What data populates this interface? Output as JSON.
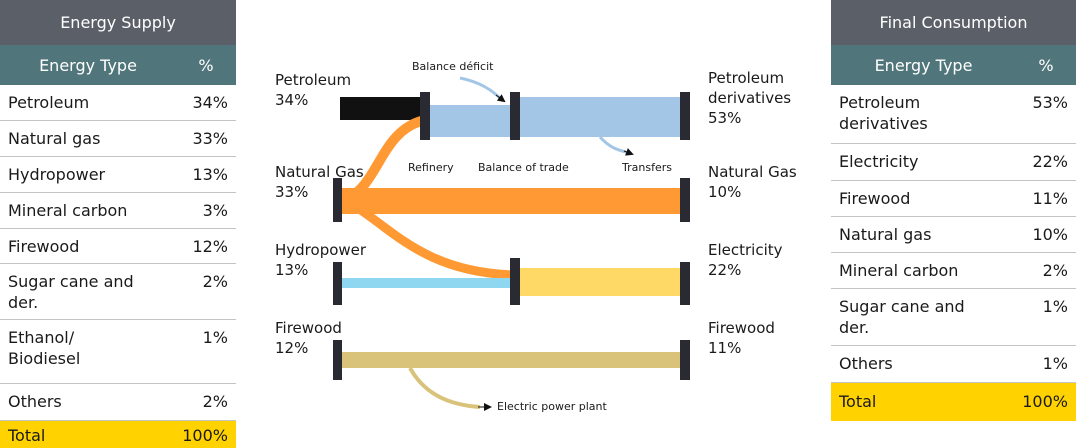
{
  "supply_table": {
    "title": "Energy Supply",
    "header": [
      "Energy Type",
      "%"
    ],
    "rows": [
      [
        "Petroleum",
        "34%"
      ],
      [
        "Natural gas",
        "33%"
      ],
      [
        "Hydropower",
        "13%"
      ],
      [
        "Mineral carbon",
        "3%"
      ],
      [
        "Firewood",
        "12%"
      ],
      [
        "Sugar cane and der.",
        "2%"
      ],
      [
        "Ethanol/ Biodiesel",
        "1%"
      ],
      [
        "Others",
        "2%"
      ]
    ],
    "total": [
      "Total",
      "100%"
    ]
  },
  "flow": {
    "sources": [
      {
        "label": "Petroleum",
        "value": "34%"
      },
      {
        "label": "Natural Gas",
        "value": "33%"
      },
      {
        "label": "Hydropower",
        "value": "13%"
      },
      {
        "label": "Firewood",
        "value": "12%"
      }
    ],
    "targets": [
      {
        "label": "Petroleum derivatives",
        "value": "53%"
      },
      {
        "label": "Natural Gas",
        "value": "10%"
      },
      {
        "label": "Electricity",
        "value": "22%"
      },
      {
        "label": "Firewood",
        "value": "11%"
      }
    ],
    "annotations": [
      "Balance déficit",
      "Refinery",
      "Balance of trade",
      "Transfers",
      "Electric power plant"
    ]
  },
  "consumption_table": {
    "title": "Final Consumption",
    "header": [
      "Energy Type",
      "%"
    ],
    "rows": [
      [
        "Petroleum derivatives",
        "53%"
      ],
      [
        "Electricity",
        "22%"
      ],
      [
        "Firewood",
        "11%"
      ],
      [
        "Natural gas",
        "10%"
      ],
      [
        "Mineral carbon",
        "2%"
      ],
      [
        "Sugar cane and der.",
        "1%"
      ],
      [
        "Others",
        "1%"
      ]
    ],
    "total": [
      "Total",
      "100%"
    ]
  }
}
